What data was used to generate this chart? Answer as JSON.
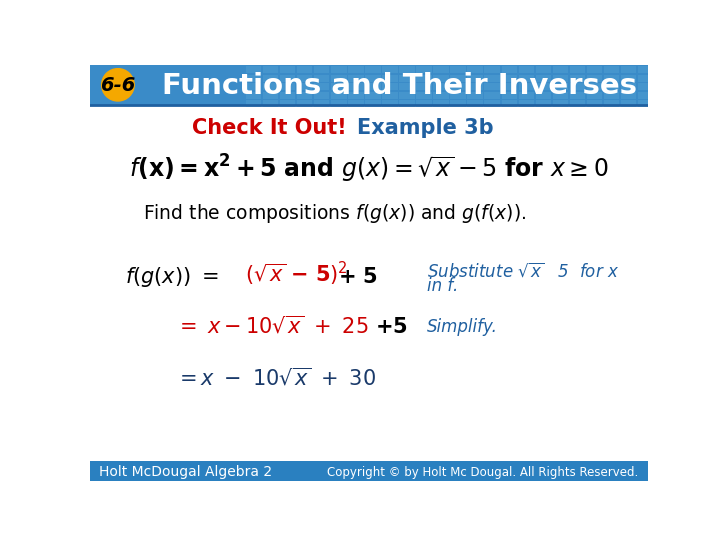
{
  "header_bg_color": "#3a8bc8",
  "header_text": "Functions and Their Inverses",
  "header_num": "6-6",
  "header_num_bg": "#f5a800",
  "body_bg": "#ffffff",
  "check_it_out_color": "#cc0000",
  "example_color": "#2060a0",
  "check_it_out_text": "Check It Out!",
  "example_text": "Example 3b",
  "footer_text": "Holt McDougal Algebra 2",
  "footer_right": "Copyright © by Holt Mc Dougal. All Rights Reserved.",
  "footer_bg": "#2a80c0",
  "red": "#cc0000",
  "blue": "#2060a0",
  "black": "#000000",
  "dark_blue": "#1a3a6a"
}
